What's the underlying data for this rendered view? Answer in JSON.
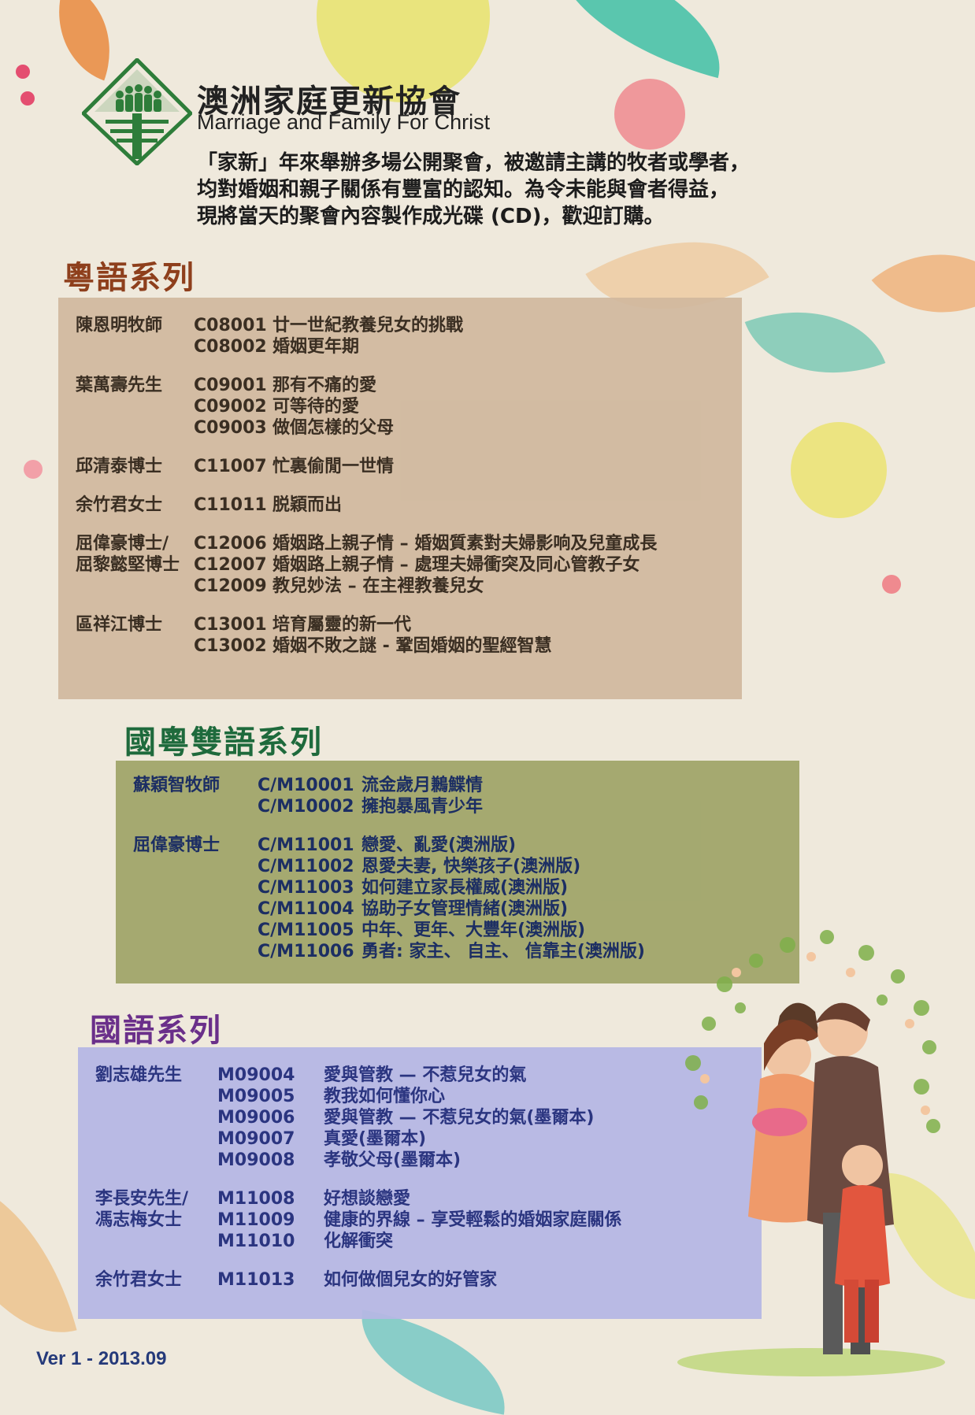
{
  "header": {
    "org_name_cn": "澳洲家庭更新協會",
    "org_name_en": "Marriage and Family For Christ",
    "intro_lines": [
      "「家新」年來舉辦多場公開聚會，被邀請主講的牧者或學者，",
      "均對婚姻和親子關係有豐富的認知。為令未能與會者得益，",
      "現將當天的聚會內容製作成光碟 (CD)，歡迎訂購。"
    ]
  },
  "colors": {
    "cantonese_title": "#8e3f1c",
    "bilingual_title": "#1e6a3c",
    "mandarin_title": "#6a2f8a",
    "logo_green": "#2e7d3a"
  },
  "sections": {
    "cantonese": {
      "title": "粵語系列",
      "groups": [
        {
          "speaker": [
            "陳恩明牧師"
          ],
          "items": [
            {
              "code": "C08001",
              "title": "廿一世紀教養兒女的挑戰"
            },
            {
              "code": "C08002",
              "title": "婚姻更年期"
            }
          ]
        },
        {
          "speaker": [
            "葉萬壽先生"
          ],
          "items": [
            {
              "code": "C09001",
              "title": "那有不痛的愛"
            },
            {
              "code": "C09002",
              "title": "可等待的愛"
            },
            {
              "code": "C09003",
              "title": "做個怎樣的父母"
            }
          ]
        },
        {
          "speaker": [
            "邱清泰博士"
          ],
          "items": [
            {
              "code": "C11007",
              "title": "忙裏偷閒一世情"
            }
          ]
        },
        {
          "speaker": [
            "余竹君女士"
          ],
          "items": [
            {
              "code": "C11011",
              "title": "脱穎而出"
            }
          ]
        },
        {
          "speaker": [
            "屈偉豪博士/",
            "屈黎懿堅博士"
          ],
          "items": [
            {
              "code": "C12006",
              "title": "婚姻路上親子情 – 婚姻質素對夫婦影响及兒童成長"
            },
            {
              "code": "C12007",
              "title": "婚姻路上親子情 – 處理夫婦衝突及同心管教子女"
            },
            {
              "code": "C12009",
              "title": "教兒妙法 – 在主裡教養兒女"
            }
          ]
        },
        {
          "speaker": [
            "區祥江博士"
          ],
          "items": [
            {
              "code": "C13001",
              "title": "培育屬靈的新一代"
            },
            {
              "code": "C13002",
              "title": "婚姻不敗之謎 - 鞏固婚姻的聖經智慧"
            }
          ]
        }
      ]
    },
    "bilingual": {
      "title": "國粵雙語系列",
      "groups": [
        {
          "speaker": [
            "蘇穎智牧師"
          ],
          "items": [
            {
              "code": "C/M10001",
              "title": "流金歲月鶼鰈情"
            },
            {
              "code": "C/M10002",
              "title": "擁抱暴風青少年"
            }
          ]
        },
        {
          "speaker": [
            "屈偉豪博士"
          ],
          "items": [
            {
              "code": "C/M11001",
              "title": "戀愛、亂愛(澳洲版)"
            },
            {
              "code": "C/M11002",
              "title": "恩愛夫妻, 快樂孩子(澳洲版)"
            },
            {
              "code": "C/M11003",
              "title": "如何建立家長權威(澳洲版)"
            },
            {
              "code": "C/M11004",
              "title": "協助子女管理情緒(澳洲版)"
            },
            {
              "code": "C/M11005",
              "title": "中年、更年、大豐年(澳洲版)"
            },
            {
              "code": "C/M11006",
              "title": "勇者: 家主、 自主、 信靠主(澳洲版)"
            }
          ]
        }
      ]
    },
    "mandarin": {
      "title": "國語系列",
      "groups": [
        {
          "speaker": [
            "劉志雄先生"
          ],
          "items": [
            {
              "code": "M09004",
              "title": "愛與管教 — 不惹兒女的氣"
            },
            {
              "code": "M09005",
              "title": "教我如何懂你心"
            },
            {
              "code": "M09006",
              "title": "愛與管教 — 不惹兒女的氣(墨爾本)"
            },
            {
              "code": "M09007",
              "title": "真愛(墨爾本)"
            },
            {
              "code": "M09008",
              "title": "孝敬父母(墨爾本)"
            }
          ]
        },
        {
          "speaker": [
            "李長安先生/",
            "馮志梅女士"
          ],
          "items": [
            {
              "code": "M11008",
              "title": "好想談戀愛"
            },
            {
              "code": "M11009",
              "title": "健康的界線 – 享受輕鬆的婚姻家庭關係"
            },
            {
              "code": "M11010",
              "title": "化解衝突"
            }
          ]
        },
        {
          "speaker": [
            "余竹君女士"
          ],
          "items": [
            {
              "code": "M11013",
              "title": "如何做個兒女的好管家"
            }
          ]
        }
      ]
    }
  },
  "footer": {
    "version": "Ver 1 - 2013.09"
  }
}
